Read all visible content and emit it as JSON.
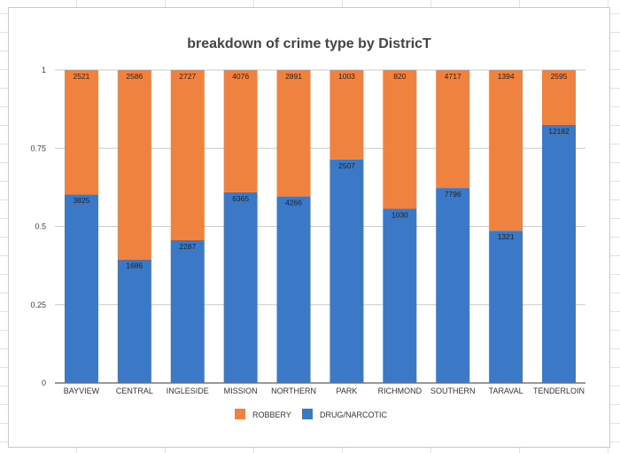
{
  "chart_data": {
    "type": "bar",
    "stacked": true,
    "normalized": true,
    "title": "breakdown of crime type by DistricT",
    "xlabel": "",
    "ylabel": "",
    "ylim": [
      0,
      1
    ],
    "yticks": [
      "0",
      "0.25",
      "0.5",
      "0.75",
      "1"
    ],
    "categories": [
      "BAYVIEW",
      "CENTRAL",
      "INGLESIDE",
      "MISSION",
      "NORTHERN",
      "PARK",
      "RICHMOND",
      "SOUTHERN",
      "TARAVAL",
      "TENDERLOIN"
    ],
    "series": [
      {
        "name": "DRUG/NARCOTIC",
        "color": "#3b78c6",
        "values": [
          3825,
          1686,
          2287,
          6365,
          4266,
          2507,
          1030,
          7796,
          1321,
          12182
        ]
      },
      {
        "name": "ROBBERY",
        "color": "#f0823f",
        "values": [
          2521,
          2586,
          2727,
          4076,
          2891,
          1003,
          820,
          4717,
          1394,
          2595
        ]
      }
    ],
    "legend": [
      "ROBBERY",
      "DRUG/NARCOTIC"
    ],
    "legend_position": "bottom",
    "grid": true
  }
}
